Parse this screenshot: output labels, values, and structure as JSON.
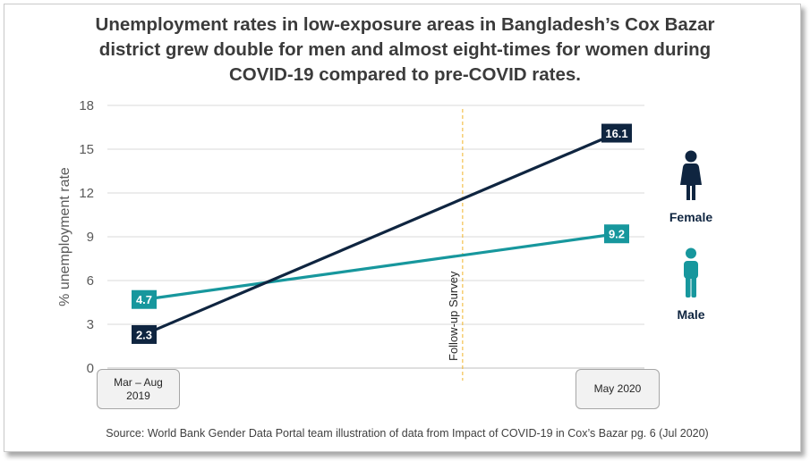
{
  "title_lines": [
    "Unemployment rates in low-exposure areas in Bangladesh’s Cox Bazar",
    "district grew double for men and almost eight-times for women during",
    "COVID-19 compared to pre-COVID rates."
  ],
  "source": "Source:  World Bank Gender  Data Portal team illustration  of data from Impact of COVID-19  in Cox’s Bazar pg. 6 (Jul 2020)",
  "legend": {
    "female_label": "Female",
    "male_label": "Male",
    "female_icon": "female-person-icon",
    "male_icon": "male-person-icon"
  },
  "colors": {
    "female": "#0f2540",
    "male": "#17979d",
    "marker": "#f0b429",
    "grid": "#d9d9d9"
  },
  "chart_data": {
    "type": "line",
    "title": "Unemployment rates in low-exposure areas in Bangladesh’s Cox Bazar district grew double for men and almost eight-times for women during COVID-19 compared to pre-COVID rates.",
    "ylabel": "% unemployment rate",
    "xlabel": "",
    "ylim": [
      0,
      18
    ],
    "yticks": [
      0,
      3,
      6,
      9,
      12,
      15,
      18
    ],
    "grid": true,
    "categories": [
      "Mar – Aug 2019",
      "May 2020"
    ],
    "category_lines": [
      [
        "Mar – Aug",
        "2019"
      ],
      [
        "May 2020"
      ]
    ],
    "series": [
      {
        "name": "Female",
        "values": [
          2.3,
          16.1
        ],
        "labels": [
          "2.3",
          "16.1"
        ]
      },
      {
        "name": "Male",
        "values": [
          4.7,
          9.2
        ],
        "labels": [
          "4.7",
          "9.2"
        ]
      }
    ],
    "annotation": {
      "label": "Follow-up Survey",
      "fraction": 0.674
    },
    "legend_position": "right"
  }
}
